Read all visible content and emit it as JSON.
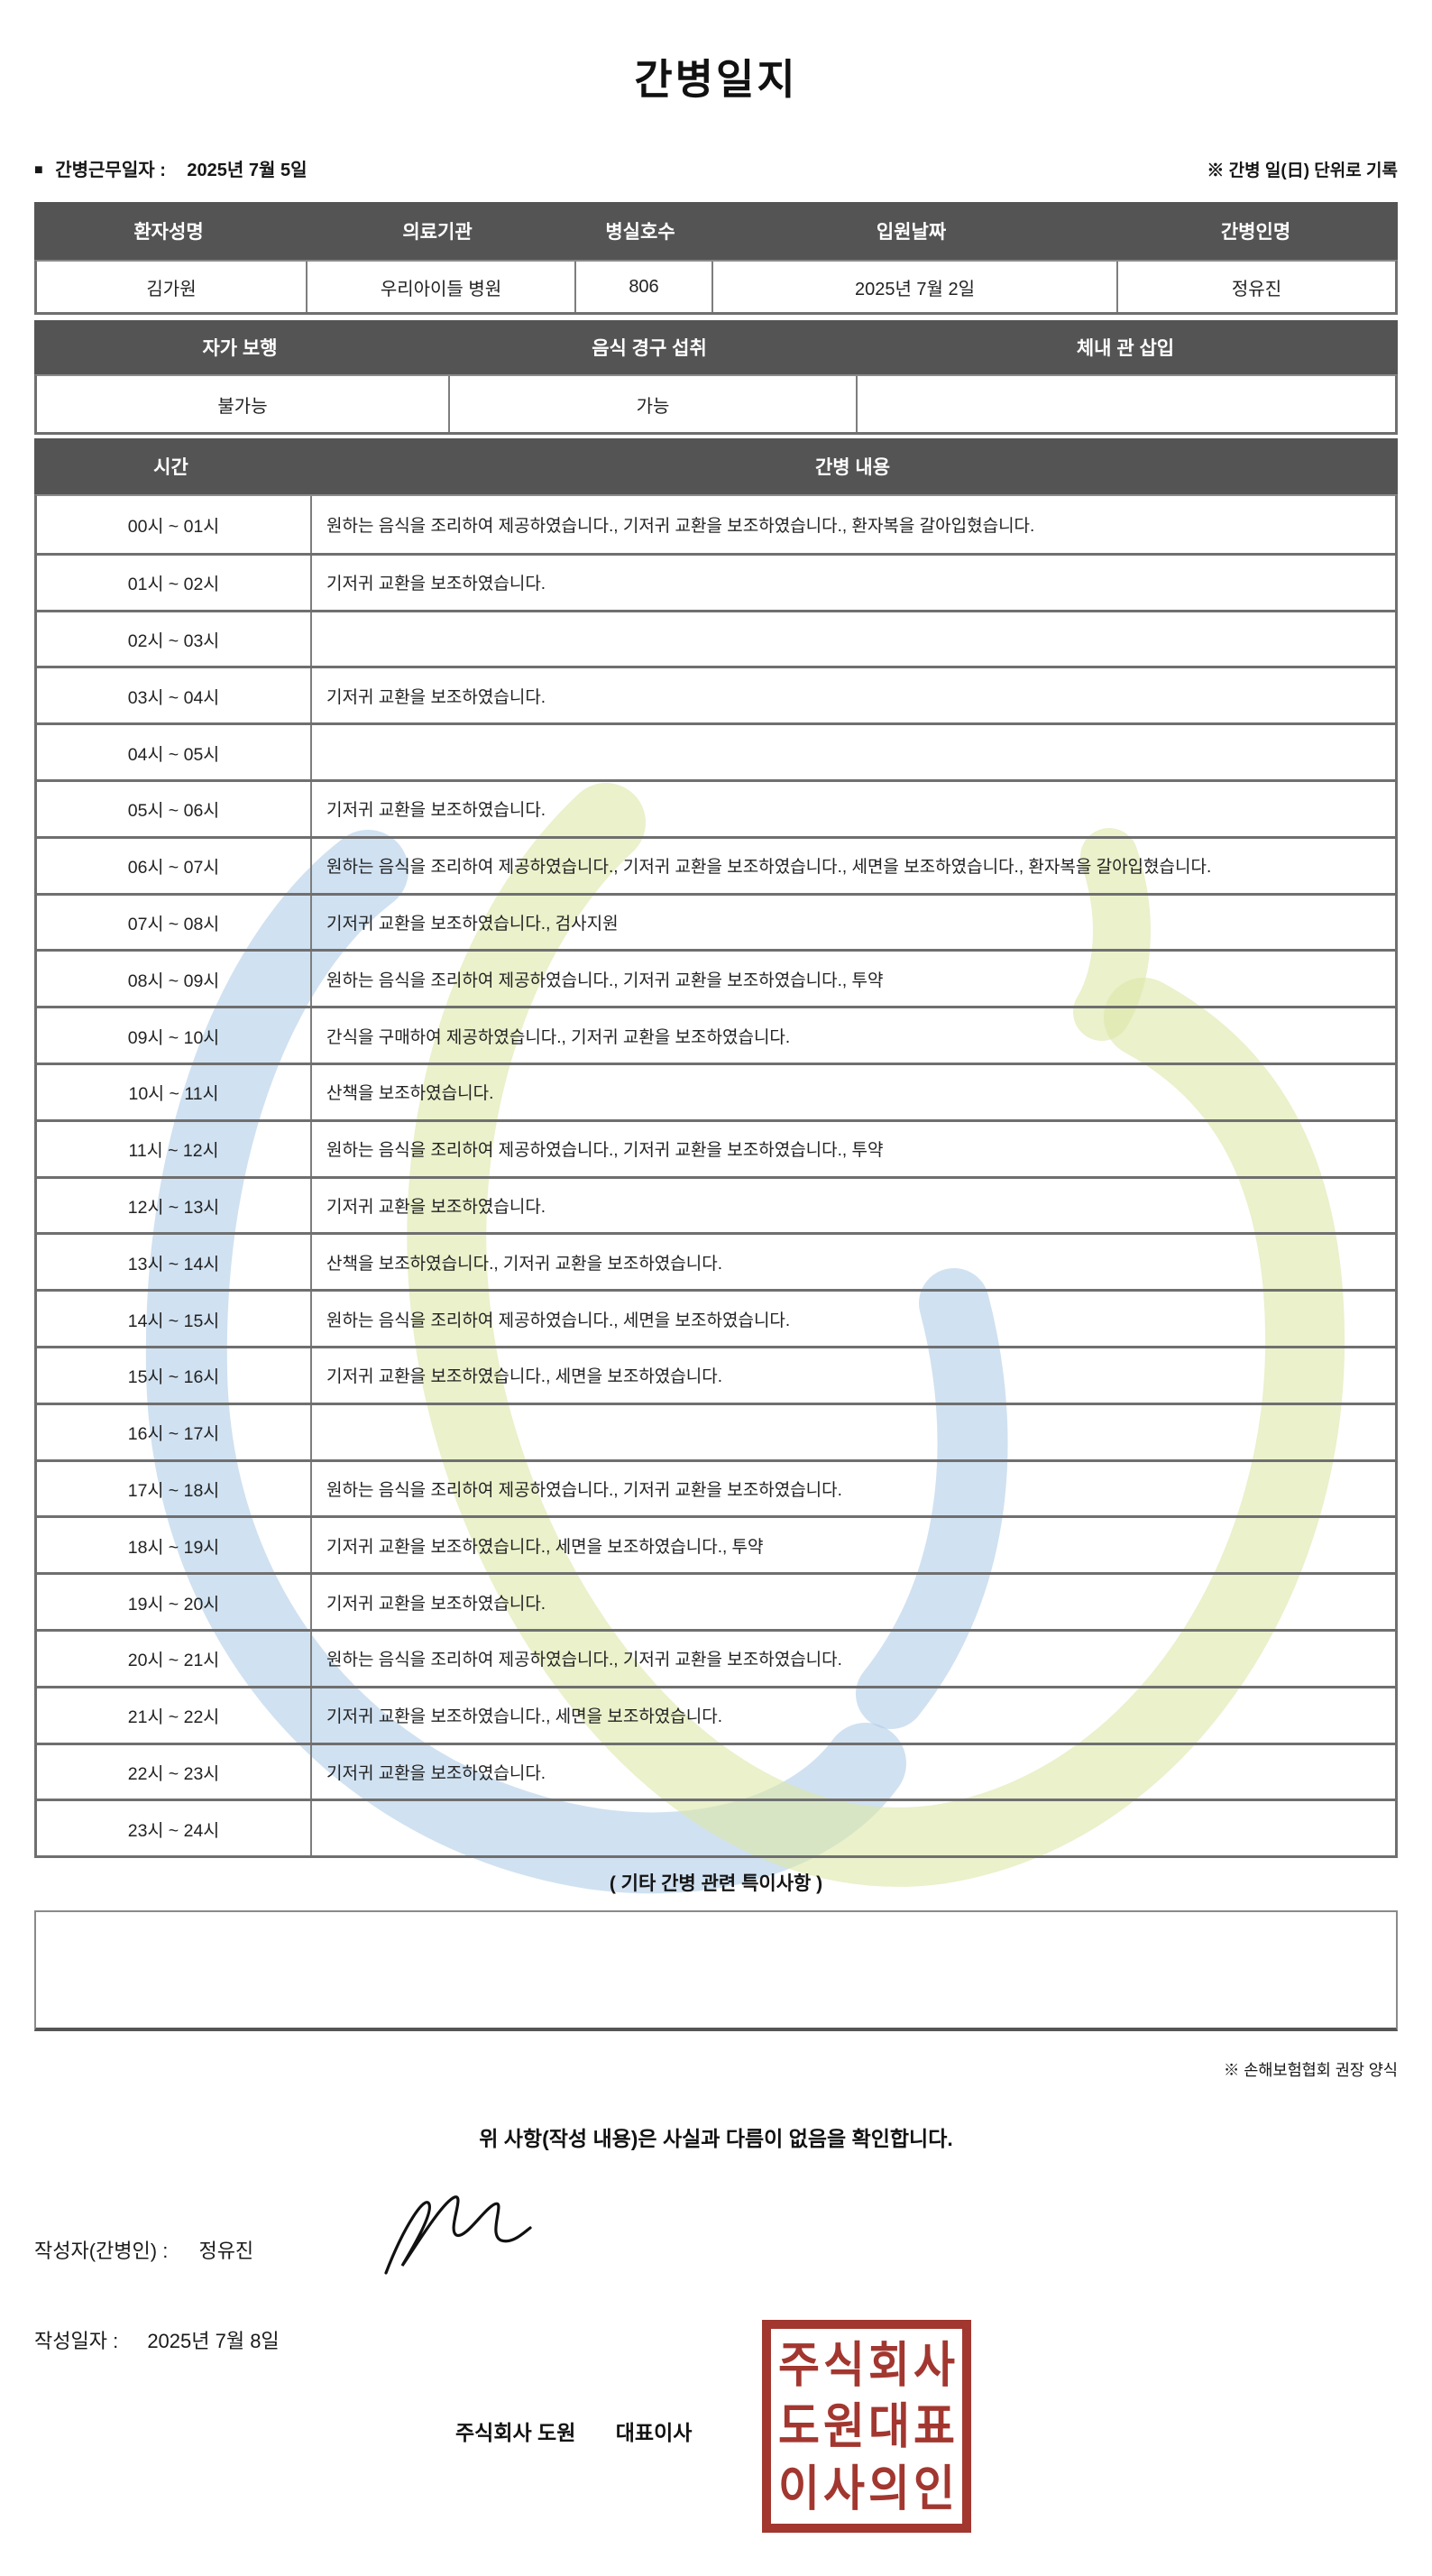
{
  "page": {
    "title": "간병일지",
    "bullet": "■",
    "duty_date_label": "간병근무일자 :",
    "duty_date_value": "2025년 7월 5일",
    "unit_note": "※ 간병 일(日) 단위로 기록"
  },
  "patient_table": {
    "headers": [
      "환자성명",
      "의료기관",
      "병실호수",
      "입원날짜",
      "간병인명"
    ],
    "values": [
      "김가원",
      "우리아이들 병원",
      "806",
      "2025년 7월 2일",
      "정유진"
    ]
  },
  "status_table": {
    "headers": [
      "자가 보행",
      "음식 경구 섭취",
      "체내 관 삽입"
    ],
    "values": [
      "불가능",
      "가능",
      ""
    ]
  },
  "care_table": {
    "time_header": "시간",
    "content_header": "간병 내용",
    "rows": [
      {
        "time": "00시 ~ 01시",
        "content": "원하는 음식을 조리하여 제공하였습니다., 기저귀 교환을 보조하였습니다., 환자복을 갈아입혔습니다."
      },
      {
        "time": "01시 ~ 02시",
        "content": "기저귀 교환을 보조하였습니다."
      },
      {
        "time": "02시 ~ 03시",
        "content": ""
      },
      {
        "time": "03시 ~ 04시",
        "content": "기저귀 교환을 보조하였습니다."
      },
      {
        "time": "04시 ~ 05시",
        "content": ""
      },
      {
        "time": "05시 ~ 06시",
        "content": "기저귀 교환을 보조하였습니다."
      },
      {
        "time": "06시 ~ 07시",
        "content": "원하는 음식을 조리하여 제공하였습니다., 기저귀 교환을 보조하였습니다., 세면을 보조하였습니다., 환자복을 갈아입혔습니다."
      },
      {
        "time": "07시 ~ 08시",
        "content": "기저귀 교환을 보조하였습니다., 검사지원"
      },
      {
        "time": "08시 ~ 09시",
        "content": "원하는 음식을 조리하여 제공하였습니다., 기저귀 교환을 보조하였습니다., 투약"
      },
      {
        "time": "09시 ~ 10시",
        "content": "간식을 구매하여 제공하였습니다., 기저귀 교환을 보조하였습니다."
      },
      {
        "time": "10시 ~ 11시",
        "content": "산책을 보조하였습니다."
      },
      {
        "time": "11시 ~ 12시",
        "content": "원하는 음식을 조리하여 제공하였습니다., 기저귀 교환을 보조하였습니다., 투약"
      },
      {
        "time": "12시 ~ 13시",
        "content": "기저귀 교환을 보조하였습니다."
      },
      {
        "time": "13시 ~ 14시",
        "content": "산책을 보조하였습니다., 기저귀 교환을 보조하였습니다."
      },
      {
        "time": "14시 ~ 15시",
        "content": "원하는 음식을 조리하여 제공하였습니다., 세면을 보조하였습니다."
      },
      {
        "time": "15시 ~ 16시",
        "content": "기저귀 교환을 보조하였습니다., 세면을 보조하였습니다."
      },
      {
        "time": "16시 ~ 17시",
        "content": ""
      },
      {
        "time": "17시 ~ 18시",
        "content": "원하는 음식을 조리하여 제공하였습니다., 기저귀 교환을 보조하였습니다."
      },
      {
        "time": "18시 ~ 19시",
        "content": "기저귀 교환을 보조하였습니다., 세면을 보조하였습니다., 투약"
      },
      {
        "time": "19시 ~ 20시",
        "content": "기저귀 교환을 보조하였습니다."
      },
      {
        "time": "20시 ~ 21시",
        "content": "원하는 음식을 조리하여 제공하였습니다., 기저귀 교환을 보조하였습니다."
      },
      {
        "time": "21시 ~ 22시",
        "content": "기저귀 교환을 보조하였습니다., 세면을 보조하였습니다."
      },
      {
        "time": "22시 ~ 23시",
        "content": "기저귀 교환을 보조하였습니다."
      },
      {
        "time": "23시 ~ 24시",
        "content": ""
      }
    ]
  },
  "notes": {
    "title": "( 기타 간병 관련 특이사항 )",
    "content": ""
  },
  "footer": {
    "form_note": "※ 손해보험협회 권장 양식",
    "confirmation": "위 사항(작성 내용)은 사실과 다름이 없음을 확인합니다.",
    "writer_label": "작성자(간병인) :",
    "writer_name": "정유진",
    "written_date_label": "작성일자 :",
    "written_date_value": "2025년 7월 8일",
    "company_name": "주식회사 도원",
    "ceo_label": "대표이사",
    "stamp_lines": [
      "주식회사",
      "도원대표",
      "이사의인"
    ]
  },
  "colors": {
    "header_bg": "#545454",
    "table_border": "#7a7a7a",
    "stamp_red": "#a23730",
    "watermark_blue": "#a9c8e6",
    "watermark_green": "#dce8a8"
  }
}
